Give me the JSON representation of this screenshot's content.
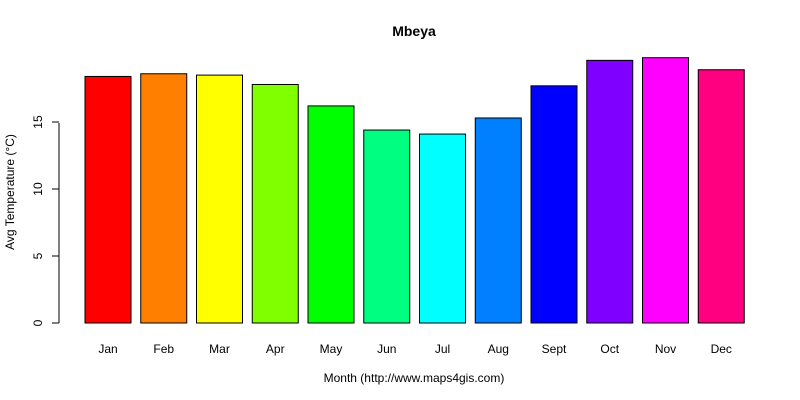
{
  "chart_data": {
    "type": "bar",
    "title": "Mbeya",
    "xlabel": "Month (http://www.maps4gis.com)",
    "ylabel": "Avg Temperature (°C)",
    "categories": [
      "Jan",
      "Feb",
      "Mar",
      "Apr",
      "May",
      "Jun",
      "Jul",
      "Aug",
      "Sept",
      "Oct",
      "Nov",
      "Dec"
    ],
    "values": [
      18.4,
      18.6,
      18.5,
      17.8,
      16.2,
      14.4,
      14.1,
      15.3,
      17.7,
      19.6,
      19.8,
      18.9
    ],
    "colors": [
      "#FF0000",
      "#FF8000",
      "#FFFF00",
      "#80FF00",
      "#00FF00",
      "#00FF80",
      "#00FFFF",
      "#0080FF",
      "#0000FF",
      "#8000FF",
      "#FF00FF",
      "#FF0080"
    ],
    "yticks": [
      0,
      5,
      10,
      15
    ],
    "ylim": [
      0,
      20
    ],
    "grid": false,
    "legend": "none"
  }
}
